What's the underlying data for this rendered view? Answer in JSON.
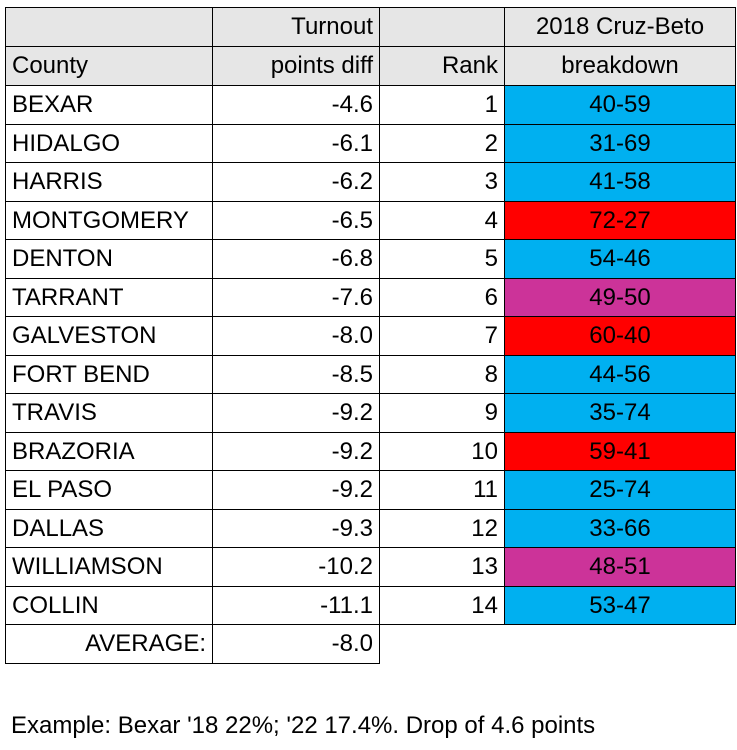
{
  "headers": {
    "county": "County",
    "diff_line1": "Turnout",
    "diff_line2": "points diff",
    "rank": "Rank",
    "breakdown_line1": "2018 Cruz-Beto",
    "breakdown_line2": "breakdown"
  },
  "rows": [
    {
      "county": "BEXAR",
      "diff": "-4.6",
      "rank": "1",
      "breakdown": "40-59",
      "color": "#00b0f0"
    },
    {
      "county": "HIDALGO",
      "diff": "-6.1",
      "rank": "2",
      "breakdown": "31-69",
      "color": "#00b0f0"
    },
    {
      "county": "HARRIS",
      "diff": "-6.2",
      "rank": "3",
      "breakdown": "41-58",
      "color": "#00b0f0"
    },
    {
      "county": "MONTGOMERY",
      "diff": "-6.5",
      "rank": "4",
      "breakdown": "72-27",
      "color": "#ff0000"
    },
    {
      "county": "DENTON",
      "diff": "-6.8",
      "rank": "5",
      "breakdown": "54-46",
      "color": "#00b0f0"
    },
    {
      "county": "TARRANT",
      "diff": "-7.6",
      "rank": "6",
      "breakdown": "49-50",
      "color": "#cc3399"
    },
    {
      "county": "GALVESTON",
      "diff": "-8.0",
      "rank": "7",
      "breakdown": "60-40",
      "color": "#ff0000"
    },
    {
      "county": "FORT BEND",
      "diff": "-8.5",
      "rank": "8",
      "breakdown": "44-56",
      "color": "#00b0f0"
    },
    {
      "county": "TRAVIS",
      "diff": "-9.2",
      "rank": "9",
      "breakdown": "35-74",
      "color": "#00b0f0"
    },
    {
      "county": "BRAZORIA",
      "diff": "-9.2",
      "rank": "10",
      "breakdown": "59-41",
      "color": "#ff0000"
    },
    {
      "county": "EL PASO",
      "diff": "-9.2",
      "rank": "11",
      "breakdown": "25-74",
      "color": "#00b0f0"
    },
    {
      "county": "DALLAS",
      "diff": "-9.3",
      "rank": "12",
      "breakdown": "33-66",
      "color": "#00b0f0"
    },
    {
      "county": "WILLIAMSON",
      "diff": "-10.2",
      "rank": "13",
      "breakdown": "48-51",
      "color": "#cc3399"
    },
    {
      "county": "COLLIN",
      "diff": "-11.1",
      "rank": "14",
      "breakdown": "53-47",
      "color": "#00b0f0"
    }
  ],
  "average": {
    "label": "AVERAGE:",
    "value": "-8.0"
  },
  "note": "Example: Bexar '18 22%; '22 17.4%. Drop of 4.6 points"
}
